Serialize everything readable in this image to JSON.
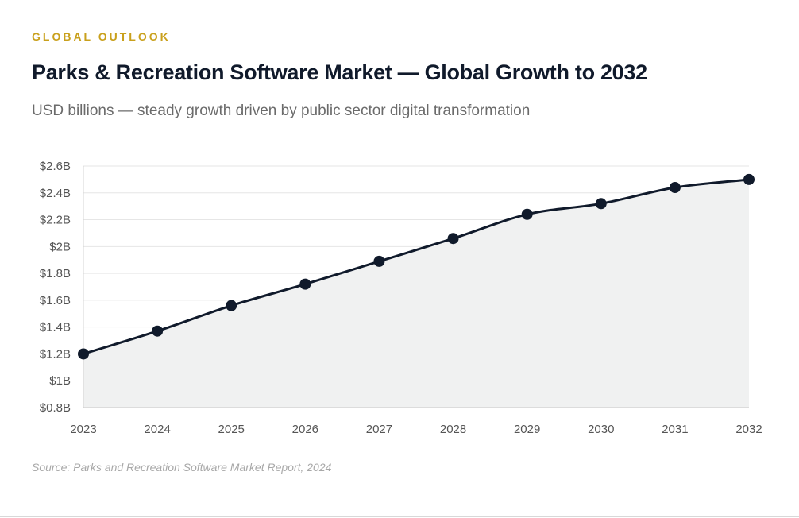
{
  "header": {
    "eyebrow": "GLOBAL OUTLOOK",
    "title": "Parks & Recreation Software Market — Global Growth to 2032",
    "subtitle": "USD billions — steady growth driven by public sector digital transformation"
  },
  "footer": {
    "source": "Source: Parks and Recreation Software Market Report, 2024"
  },
  "colors": {
    "accent": "#c9a01c",
    "title": "#101a2b",
    "line": "#101a2b",
    "area_fill": "#f0f1f1",
    "grid": "#e6e6e6"
  },
  "chart_data": {
    "type": "area",
    "x": [
      2023,
      2024,
      2025,
      2026,
      2027,
      2028,
      2029,
      2030,
      2031,
      2032
    ],
    "series": [
      {
        "values": [
          1.2,
          1.37,
          1.56,
          1.72,
          1.89,
          2.06,
          2.24,
          2.32,
          2.44,
          2.5
        ]
      }
    ],
    "ylim": [
      0.8,
      2.6
    ],
    "y_ticks": [
      0.8,
      1.0,
      1.2,
      1.4,
      1.6,
      1.8,
      2.0,
      2.2,
      2.4,
      2.6
    ],
    "y_tick_labels": [
      "$0.8B",
      "$1B",
      "$1.2B",
      "$1.4B",
      "$1.6B",
      "$1.8B",
      "$2B",
      "$2.2B",
      "$2.4B",
      "$2.6B"
    ],
    "x_tick_labels": [
      "2023",
      "2024",
      "2025",
      "2026",
      "2027",
      "2028",
      "2029",
      "2030",
      "2031",
      "2032"
    ],
    "grid": true,
    "markers": true,
    "smooth": true
  }
}
